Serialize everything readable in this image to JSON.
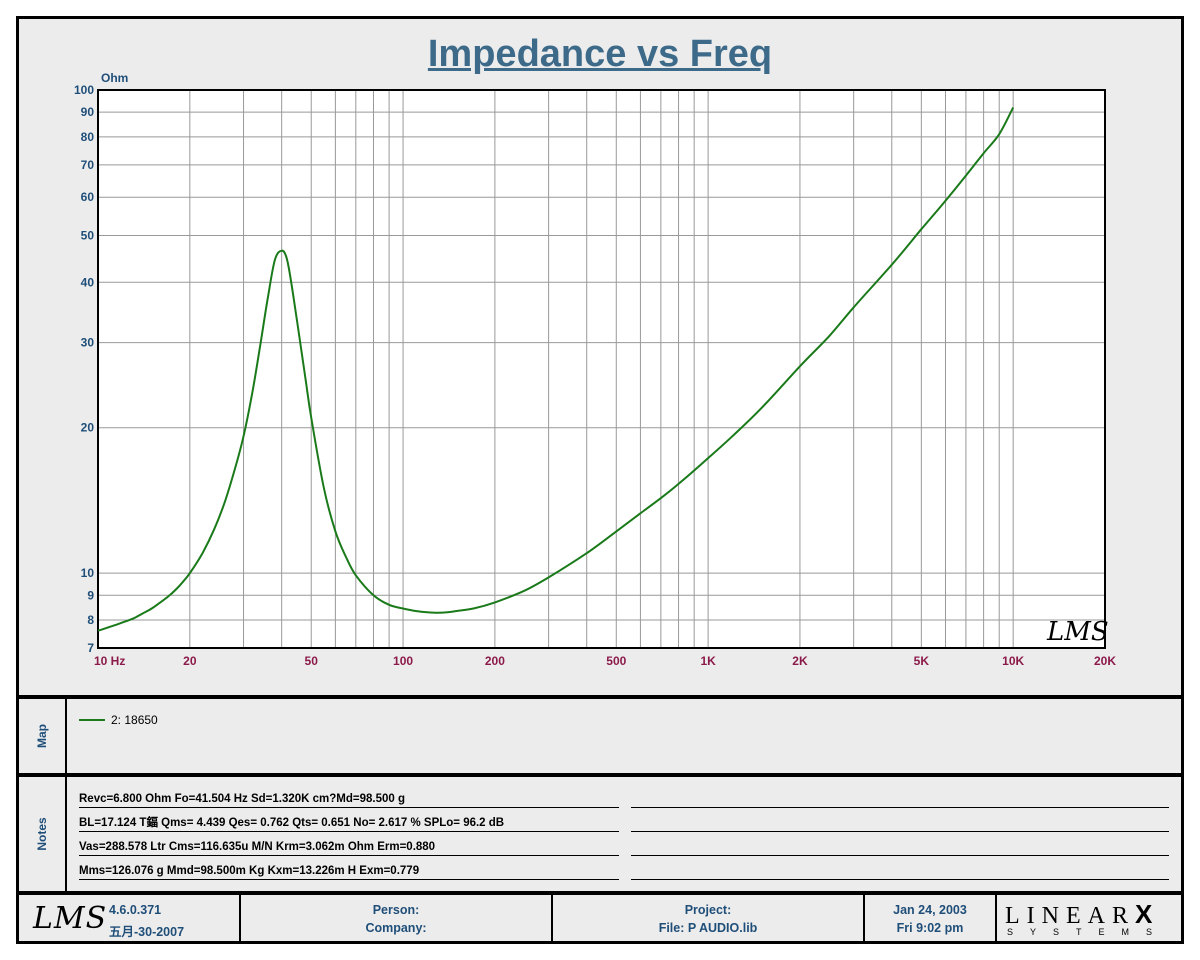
{
  "title": "Impedance vs Freq",
  "chart_data": {
    "type": "line",
    "title": "Impedance vs Freq",
    "ylabel": "Ohm",
    "xscale": "log",
    "yscale": "log",
    "xlim": [
      10,
      20000
    ],
    "ylim": [
      7,
      100
    ],
    "grid": true,
    "x_ticks": [
      {
        "value": 10,
        "label": "10  Hz"
      },
      {
        "value": 20,
        "label": "20"
      },
      {
        "value": 50,
        "label": "50"
      },
      {
        "value": 100,
        "label": "100"
      },
      {
        "value": 200,
        "label": "200"
      },
      {
        "value": 500,
        "label": "500"
      },
      {
        "value": 1000,
        "label": "1K"
      },
      {
        "value": 2000,
        "label": "2K"
      },
      {
        "value": 5000,
        "label": "5K"
      },
      {
        "value": 10000,
        "label": "10K"
      },
      {
        "value": 20000,
        "label": "20K"
      }
    ],
    "y_ticks": [
      {
        "value": 7,
        "label": "7"
      },
      {
        "value": 8,
        "label": "8"
      },
      {
        "value": 9,
        "label": "9"
      },
      {
        "value": 10,
        "label": "10"
      },
      {
        "value": 20,
        "label": "20"
      },
      {
        "value": 30,
        "label": "30"
      },
      {
        "value": 40,
        "label": "40"
      },
      {
        "value": 50,
        "label": "50"
      },
      {
        "value": 60,
        "label": "60"
      },
      {
        "value": 70,
        "label": "70"
      },
      {
        "value": 80,
        "label": "80"
      },
      {
        "value": 90,
        "label": "90"
      },
      {
        "value": 100,
        "label": "100"
      }
    ],
    "series": [
      {
        "name": "2: 18650",
        "color": "#1a7a1a",
        "x": [
          10,
          11,
          12,
          13,
          14,
          15,
          16,
          17,
          18,
          19,
          20,
          22,
          24,
          26,
          28,
          30,
          32,
          34,
          36,
          38,
          40,
          41.5,
          43,
          45,
          48,
          50,
          55,
          60,
          65,
          70,
          80,
          90,
          100,
          110,
          120,
          130,
          140,
          150,
          170,
          200,
          250,
          300,
          400,
          500,
          600,
          700,
          800,
          1000,
          1200,
          1500,
          2000,
          2500,
          3000,
          4000,
          5000,
          6000,
          7000,
          8000,
          9000,
          10000
        ],
        "y": [
          7.6,
          7.75,
          7.9,
          8.05,
          8.25,
          8.45,
          8.7,
          8.95,
          9.25,
          9.6,
          10.0,
          11.0,
          12.3,
          14.0,
          16.3,
          19.2,
          23.5,
          29.5,
          37.0,
          44.5,
          46.5,
          45.0,
          40.0,
          33.0,
          25.0,
          21.0,
          15.0,
          12.2,
          10.8,
          9.9,
          9.0,
          8.6,
          8.45,
          8.35,
          8.3,
          8.28,
          8.3,
          8.35,
          8.45,
          8.7,
          9.2,
          9.8,
          11.0,
          12.2,
          13.3,
          14.3,
          15.3,
          17.3,
          19.2,
          22.0,
          26.8,
          31.0,
          35.5,
          43.5,
          51.5,
          59.0,
          66.5,
          74.0,
          81.0,
          92.0
        ]
      }
    ]
  },
  "watermark": "LMS",
  "map": {
    "label": "Map",
    "legend": [
      {
        "text": "2: 18650",
        "color": "#1a7a1a"
      }
    ]
  },
  "notes": {
    "label": "Notes",
    "lines": [
      "Revc=6.800 Ohm  Fo=41.504 Hz  Sd=1.320K cm?Md=98.500 g",
      "BL=17.124 T鍢  Qms= 4.439  Qes= 0.762  Qts= 0.651  No= 2.617 %  SPLo= 96.2 dB",
      "Vas=288.578 Ltr  Cms=116.635u M/N  Krm=3.062m Ohm  Erm=0.880",
      "Mms=126.076 g  Mmd=98.500m Kg  Kxm=13.226m H  Exm=0.779"
    ]
  },
  "footer": {
    "logo": "LMS",
    "version": "4.6.0.371",
    "date_cn": "五月-30-2007",
    "person_label": "Person:",
    "company_label": "Company:",
    "project_label": "Project:",
    "file_label": "File: P AUDIO.lib",
    "date": "Jan 24, 2003",
    "time": "Fri  9:02 pm",
    "brand_top": "LINEAR",
    "brand_x": "X",
    "brand_bottom": "SYSTEMS"
  },
  "colors": {
    "title": "#3e6a8a",
    "y_ticks": "#1f4e79",
    "x_ticks": "#8b1a4a",
    "curve": "#1a7a1a",
    "footer_text": "#1f4e79"
  }
}
